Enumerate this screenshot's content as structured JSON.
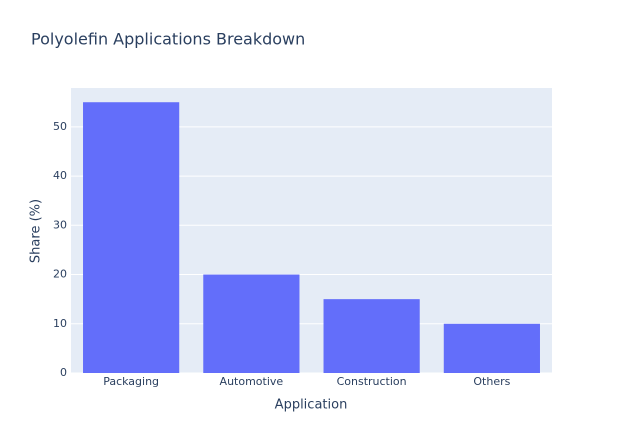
{
  "chart_data": {
    "type": "bar",
    "title": "Polyolefin Applications Breakdown",
    "x_label": "Application",
    "y_label": "Share (%)",
    "categories": [
      "Packaging",
      "Automotive",
      "Construction",
      "Others"
    ],
    "values": [
      55,
      20,
      15,
      10
    ],
    "color": "#636efa",
    "ylim": [
      0,
      57.89
    ],
    "yticks": [
      0,
      10,
      20,
      30,
      40,
      50
    ],
    "grid": true
  }
}
